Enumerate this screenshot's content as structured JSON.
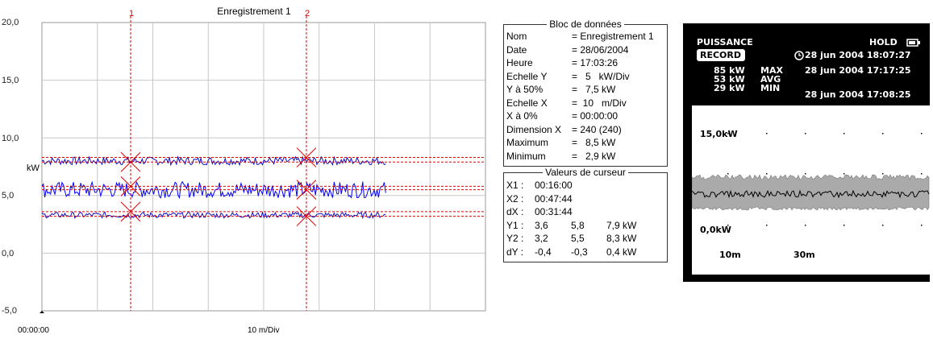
{
  "chart": {
    "title": "Enregistrement 1",
    "ylabel": "kW",
    "x_start_label": "00:00:00",
    "x_scale_label": "10 m/Div",
    "y_ticks": [
      "20,0",
      "15,0",
      "10,0",
      "5,0",
      "0,0",
      "-5,0"
    ],
    "cursor1_label": "1",
    "cursor2_label": "2",
    "colors": {
      "max_min_trace": "#1010c8",
      "avg_trace": "#0000ff",
      "cursor": "#e00000",
      "grid": "#c8c8c8"
    }
  },
  "chart_data": {
    "type": "line",
    "title": "Enregistrement 1",
    "xlabel": "10 m/Div",
    "ylabel": "kW",
    "ylim": [
      -5,
      20
    ],
    "xlim_minutes": [
      0,
      80
    ],
    "grid": true,
    "x_minutes_span": [
      0,
      62
    ],
    "series": [
      {
        "level": 8.0,
        "amplitude": 0.35
      },
      {
        "level": 5.5,
        "amplitude": 0.7
      },
      {
        "level": 3.3,
        "amplitude": 0.25
      }
    ],
    "cursor_lines_kw": [
      8.3,
      7.9,
      5.8,
      5.5,
      3.6,
      3.2
    ],
    "cursors_minutes": [
      16.0,
      47.7
    ]
  },
  "data_block": {
    "legend": "Bloc de données",
    "rows": [
      {
        "k": "Nom",
        "v": "= Enregistrement 1"
      },
      {
        "k": "Date",
        "v": "= 28/06/2004"
      },
      {
        "k": "Heure",
        "v": "= 17:03:26"
      },
      {
        "k": "Echelle Y",
        "v": "=   5   kW/Div"
      },
      {
        "k": "Y à 50%",
        "v": "=   7,5 kW"
      },
      {
        "k": "Echelle X",
        "v": "=  10   m/Div"
      },
      {
        "k": "X à 0%",
        "v": "= 00:00:00"
      },
      {
        "k": "Dimension X",
        "v": "= 240 (240)"
      },
      {
        "k": "Maximum",
        "v": "=   8,5 kW"
      },
      {
        "k": "Minimum",
        "v": "=   2,9 kW"
      }
    ]
  },
  "cursor_block": {
    "legend": "Valeurs de curseur",
    "rows": [
      {
        "k": "X1 :",
        "c1": "00:16:00",
        "c2": "",
        "c3": ""
      },
      {
        "k": "X2 :",
        "c1": "00:47:44",
        "c2": "",
        "c3": ""
      },
      {
        "k": "dX :",
        "c1": "00:31:44",
        "c2": "",
        "c3": ""
      },
      {
        "k": "Y1 :",
        "c1": "3,6",
        "c2": "5,8",
        "c3": "7,9 kW"
      },
      {
        "k": "Y2 :",
        "c1": "3,2",
        "c2": "5,5",
        "c3": "8,3 kW"
      },
      {
        "k": "dY :",
        "c1": "-0,4",
        "c2": "-0,3",
        "c3": "0,4 kW"
      }
    ]
  },
  "device": {
    "mode": "PUISSANCE",
    "hold": "HOLD",
    "record": "RECORD",
    "record_datetime": "28 jun 2004  18:07:27",
    "max_value": "85 kW",
    "max_label": "MAX",
    "max_datetime": "28 jun 2004  17:17:25",
    "avg_value": "53 kW",
    "avg_label": "AVG",
    "min_value": "29 kW",
    "min_label": "MIN",
    "min_datetime": "28 jun 2004  17:08:25",
    "y_top_label": "15,0kW",
    "y_bottom_label": "0,0kW",
    "x_label_1": "10m",
    "x_label_2": "30m",
    "icons": [
      "battery-icon",
      "clock-icon"
    ]
  }
}
